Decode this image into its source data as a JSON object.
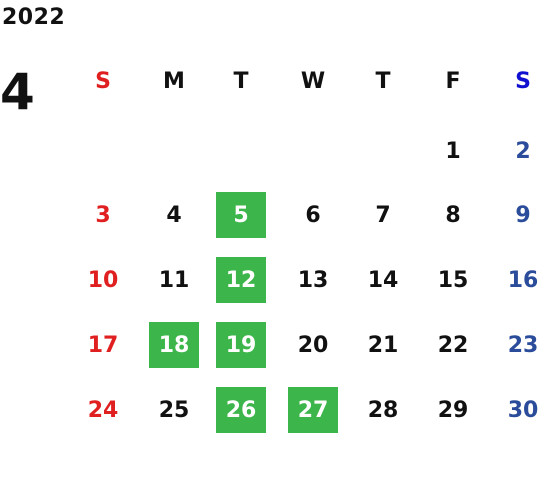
{
  "calendar": {
    "year": "2022",
    "month": "4",
    "weekdays": [
      "S",
      "M",
      "T",
      "W",
      "T",
      "F",
      "S"
    ],
    "weeks": [
      [
        "",
        "",
        "",
        "",
        "",
        "1",
        "2"
      ],
      [
        "3",
        "4",
        "5",
        "6",
        "7",
        "8",
        "9"
      ],
      [
        "10",
        "11",
        "12",
        "13",
        "14",
        "15",
        "16"
      ],
      [
        "17",
        "18",
        "19",
        "20",
        "21",
        "22",
        "23"
      ],
      [
        "24",
        "25",
        "26",
        "27",
        "28",
        "29",
        "30"
      ]
    ],
    "highlighted_days": [
      "5",
      "12",
      "18",
      "19",
      "26",
      "27"
    ]
  },
  "colors": {
    "sunday": "#e02020",
    "saturday_header": "#1010d0",
    "saturday": "#2a4c9a",
    "weekday": "#111111",
    "highlight_bg": "#3cb54a",
    "highlight_text": "#ffffff"
  }
}
